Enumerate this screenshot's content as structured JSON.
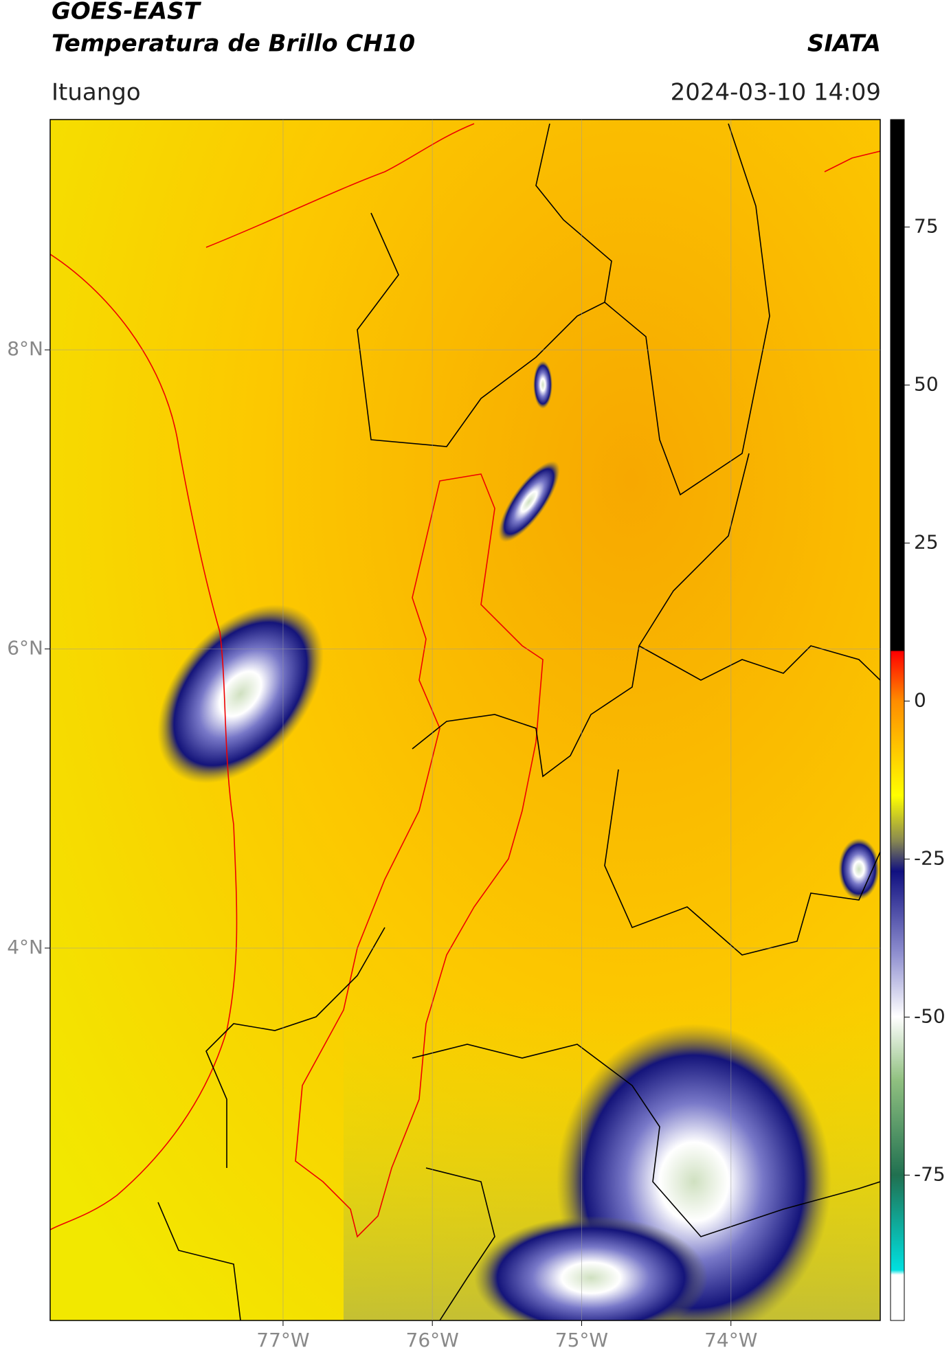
{
  "header": {
    "title": "GOES-EAST",
    "subtitle": "Temperatura de Brillo CH10",
    "source": "SIATA",
    "location": "Ituango",
    "datetime": "2024-03-10 14:09"
  },
  "map": {
    "lonlim": [
      -78.56,
      -73.0
    ],
    "latlim": [
      1.51,
      9.54
    ],
    "lon_ticks": [
      {
        "value": -77,
        "label": "77°W"
      },
      {
        "value": -76,
        "label": "76°W"
      },
      {
        "value": -75,
        "label": "75°W"
      },
      {
        "value": -74,
        "label": "74°W"
      }
    ],
    "lat_ticks": [
      {
        "value": 8,
        "label": "8°N"
      },
      {
        "value": 6,
        "label": "6°N"
      },
      {
        "value": 4,
        "label": "4°N"
      }
    ]
  },
  "colorbar": {
    "lim": [
      -98,
      92
    ],
    "ticks": [
      75,
      50,
      25,
      0,
      -25,
      -50,
      -75
    ]
  }
}
